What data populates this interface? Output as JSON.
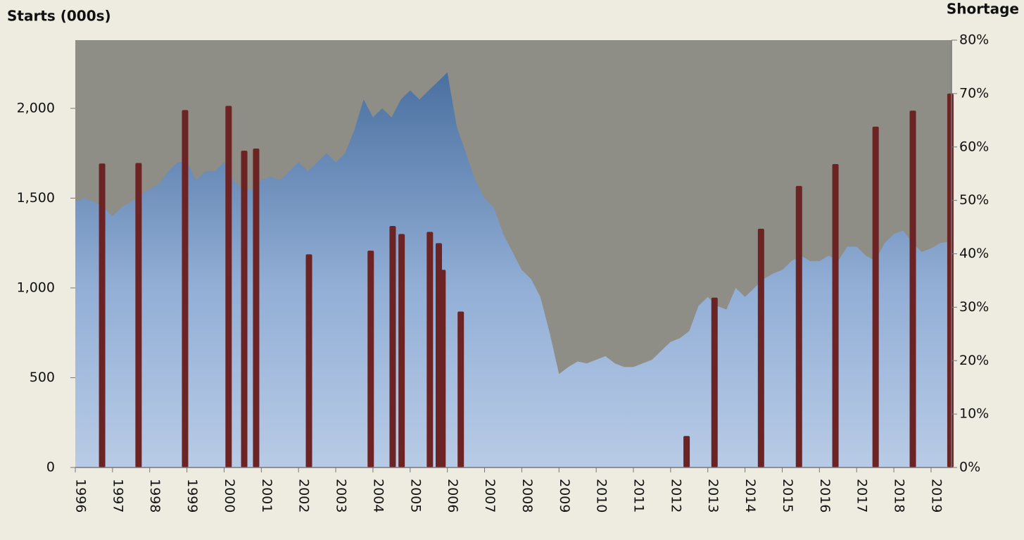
{
  "chart_data": {
    "type": "combo",
    "title": "Starts  (000s)",
    "y2_title": "Shortage",
    "xlim": [
      1996,
      2019.55
    ],
    "xticks": [
      1996,
      1997,
      1998,
      1999,
      2000,
      2001,
      2002,
      2003,
      2004,
      2005,
      2006,
      2007,
      2008,
      2009,
      2010,
      2011,
      2012,
      2013,
      2014,
      2015,
      2016,
      2017,
      2018,
      2019
    ],
    "ylim": [
      0,
      2380
    ],
    "yticks": [
      0,
      500,
      {
        "value": 1000,
        "label": "1,000"
      },
      {
        "value": 1500,
        "label": "1,500"
      },
      {
        "value": 2000,
        "label": "2,000"
      }
    ],
    "y2lim": [
      0,
      80
    ],
    "y2ticks": [
      {
        "value": 0,
        "label": "0%"
      },
      {
        "value": 10,
        "label": "10%"
      },
      {
        "value": 20,
        "label": "20%"
      },
      {
        "value": 30,
        "label": "30%"
      },
      {
        "value": 40,
        "label": "40%"
      },
      {
        "value": 50,
        "label": "50%"
      },
      {
        "value": 60,
        "label": "60%"
      },
      {
        "value": 70,
        "label": "70%"
      },
      {
        "value": 80,
        "label": "80%"
      }
    ],
    "plot_background": "#8e8d86",
    "series": [
      {
        "type": "area",
        "color": "#4a70a0",
        "x": [
          1996,
          1996.25,
          1996.5,
          1996.75,
          1997,
          1997.25,
          1997.5,
          1997.75,
          1998,
          1998.25,
          1998.5,
          1998.75,
          1999,
          1999.25,
          1999.5,
          1999.75,
          2000,
          2000.25,
          2000.5,
          2000.75,
          2001,
          2001.25,
          2001.5,
          2001.75,
          2002,
          2002.25,
          2002.5,
          2002.75,
          2003,
          2003.25,
          2003.5,
          2003.75,
          2004,
          2004.25,
          2004.5,
          2004.75,
          2005,
          2005.25,
          2005.5,
          2005.75,
          2006,
          2006.25,
          2006.5,
          2006.75,
          2007,
          2007.25,
          2007.5,
          2007.75,
          2008,
          2008.25,
          2008.5,
          2008.75,
          2009,
          2009.25,
          2009.5,
          2009.75,
          2010,
          2010.25,
          2010.5,
          2010.75,
          2011,
          2011.25,
          2011.5,
          2011.75,
          2012,
          2012.25,
          2012.5,
          2012.75,
          2013,
          2013.25,
          2013.5,
          2013.75,
          2014,
          2014.25,
          2014.5,
          2014.75,
          2015,
          2015.25,
          2015.5,
          2015.75,
          2016,
          2016.25,
          2016.5,
          2016.75,
          2017,
          2017.25,
          2017.5,
          2017.75,
          2018,
          2018.25,
          2018.5,
          2018.75,
          2019,
          2019.25,
          2019.55
        ],
        "values": [
          1480,
          1500,
          1480,
          1450,
          1400,
          1450,
          1480,
          1520,
          1550,
          1580,
          1650,
          1700,
          1700,
          1600,
          1650,
          1650,
          1700,
          1600,
          1550,
          1550,
          1600,
          1620,
          1600,
          1650,
          1700,
          1650,
          1700,
          1750,
          1700,
          1750,
          1880,
          2050,
          1950,
          2000,
          1950,
          2050,
          2100,
          2050,
          2100,
          2150,
          2200,
          1900,
          1750,
          1600,
          1500,
          1450,
          1300,
          1200,
          1100,
          1050,
          950,
          750,
          520,
          560,
          590,
          580,
          600,
          620,
          580,
          560,
          560,
          580,
          600,
          650,
          700,
          720,
          760,
          900,
          950,
          900,
          880,
          1000,
          950,
          1000,
          1050,
          1080,
          1100,
          1150,
          1180,
          1150,
          1150,
          1180,
          1150,
          1230,
          1230,
          1180,
          1150,
          1250,
          1300,
          1320,
          1250,
          1200,
          1220,
          1250,
          1260
        ]
      },
      {
        "type": "bar",
        "axis": "y2",
        "color": "#6b2323",
        "x": [
          1996.72,
          1997.7,
          1998.95,
          2000.12,
          2000.54,
          2000.86,
          2002.28,
          2003.94,
          2004.53,
          2004.77,
          2005.53,
          2005.77,
          2005.87,
          2006.36,
          2012.43,
          2013.18,
          2014.43,
          2015.45,
          2016.43,
          2017.51,
          2018.51,
          2019.52
        ],
        "values": [
          56.9,
          57.0,
          66.9,
          67.7,
          59.3,
          59.7,
          39.9,
          40.6,
          45.2,
          43.7,
          44.1,
          42.0,
          37.0,
          29.2,
          5.9,
          31.8,
          44.7,
          52.7,
          56.8,
          63.8,
          66.8,
          70.0
        ]
      }
    ]
  }
}
